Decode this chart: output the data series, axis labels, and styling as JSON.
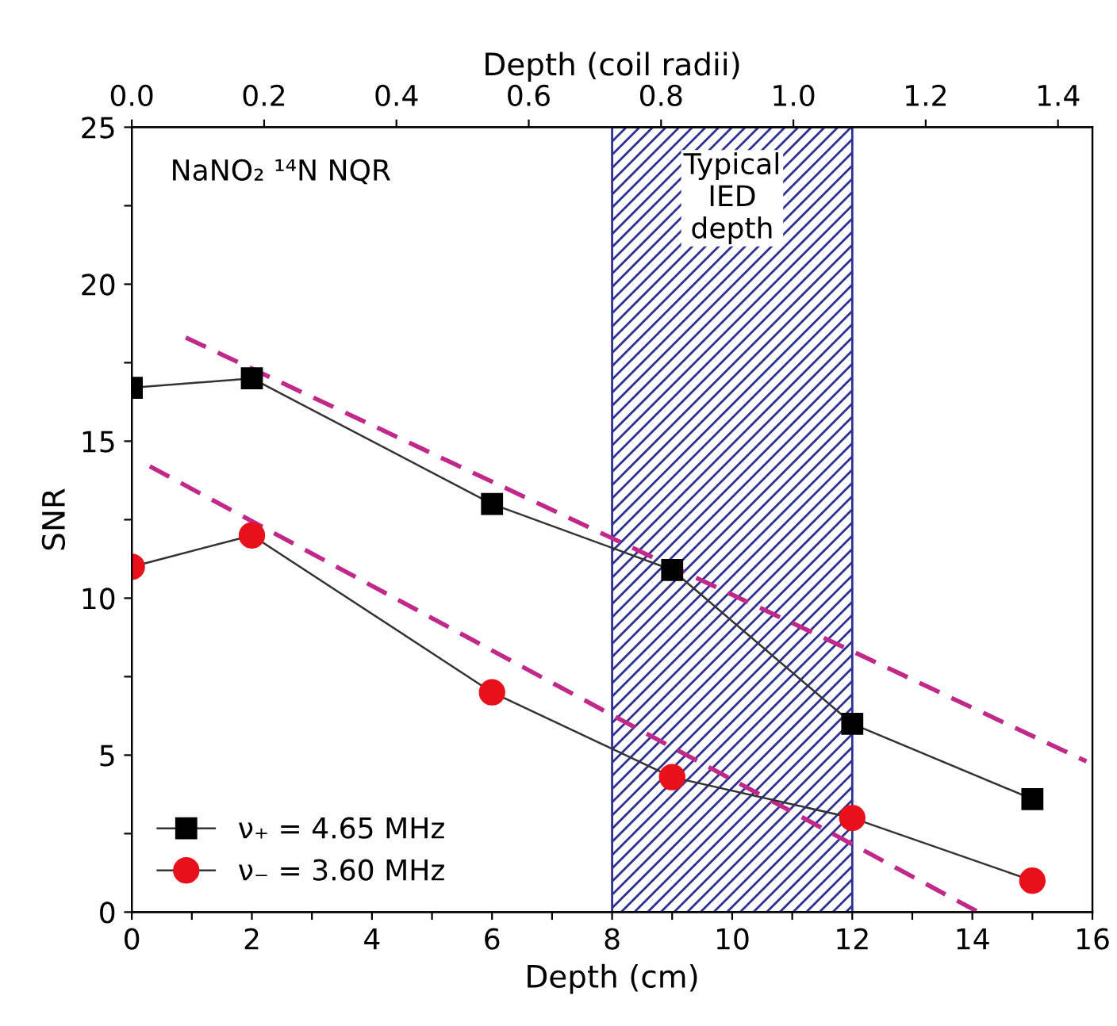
{
  "chart_data": {
    "type": "line",
    "xlabel": "Depth (cm)",
    "ylabel": "SNR",
    "x2label": "Depth (coil radii)",
    "xlim": [
      0,
      16
    ],
    "ylim": [
      0,
      25
    ],
    "xticks": [
      0,
      {
        "value": 1,
        "label": null
      },
      2,
      {
        "value": 3,
        "label": null
      },
      4,
      {
        "value": 5,
        "label": null
      },
      6,
      {
        "value": 7,
        "label": null
      },
      8,
      {
        "value": 9,
        "label": null
      },
      10,
      {
        "value": 11,
        "label": null
      },
      12,
      {
        "value": 13,
        "label": null
      },
      14,
      {
        "value": 15,
        "label": null
      },
      16
    ],
    "yticks": [
      0,
      {
        "value": 2.5,
        "label": null
      },
      5,
      {
        "value": 7.5,
        "label": null
      },
      10,
      {
        "value": 12.5,
        "label": null
      },
      15,
      {
        "value": 17.5,
        "label": null
      },
      20,
      {
        "value": 22.5,
        "label": null
      },
      25
    ],
    "x2lim": [
      0,
      1.452
    ],
    "x2ticks": [
      {
        "value": 0,
        "label": "0.0"
      },
      0.2,
      0.4,
      0.6,
      0.8,
      {
        "value": 1,
        "label": "1.0"
      },
      1.2,
      1.4
    ],
    "annotations": [
      "NaNO₂ ¹⁴N NQR"
    ],
    "legend": "bottom left",
    "grid": false,
    "line_style": "solid",
    "bands": [
      {
        "axis": "x",
        "from": 8,
        "to": 12,
        "label": "Typical\nIED\ndepth",
        "color": "#2e3192"
      }
    ],
    "series": [
      {
        "name": "ν₊ = 4.65 MHz",
        "color": "#000000",
        "marker": "square",
        "x": [
          0,
          2,
          6,
          9,
          12,
          15
        ],
        "values": [
          16.7,
          17,
          13,
          10.9,
          6,
          3.6
        ]
      },
      {
        "name": "ν₋ = 3.60 MHz",
        "color": "#e8101a",
        "marker": "circle",
        "x": [
          0,
          2,
          6,
          9,
          12,
          15
        ],
        "values": [
          11,
          12,
          7,
          4.3,
          3,
          1
        ]
      },
      {
        "type": "line",
        "color": "#c0288a",
        "marker": "none",
        "line_style": "dashed",
        "x": [
          0.9,
          15.9
        ],
        "values": [
          18.3,
          4.8
        ]
      },
      {
        "type": "line",
        "color": "#c0288a",
        "marker": "none",
        "line_style": "dashed",
        "x": [
          0.3,
          14.1
        ],
        "values": [
          14.2,
          0
        ]
      }
    ]
  }
}
